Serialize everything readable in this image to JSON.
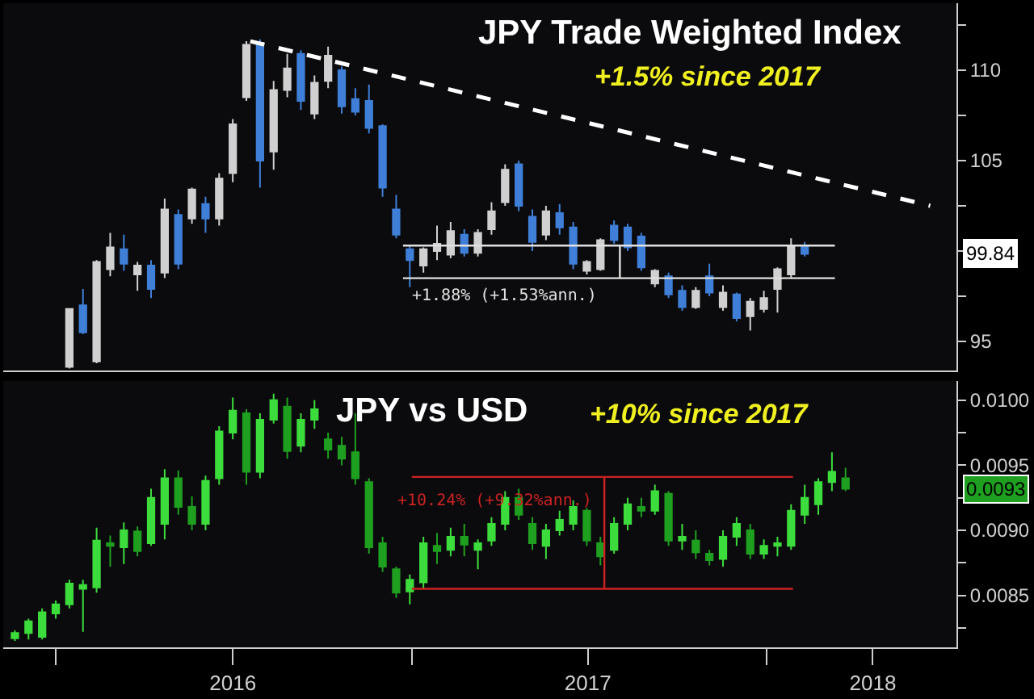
{
  "chart_data": [
    {
      "type": "candlestick",
      "title": "JPY Trade Weighted Index",
      "subtitle": "+1.5% since 2017",
      "x": [
        "2016-01-15",
        "2016-01-29",
        "2016-02-12",
        "2016-02-26",
        "2016-03-11",
        "2016-03-25",
        "2016-04-08",
        "2016-04-22",
        "2016-05-06",
        "2016-05-20",
        "2016-06-03",
        "2016-06-17",
        "2016-07-01",
        "2016-07-15",
        "2016-07-29",
        "2016-08-12",
        "2016-08-26",
        "2016-09-09",
        "2016-09-23",
        "2016-10-07",
        "2016-10-21",
        "2016-11-04",
        "2016-11-18",
        "2016-12-02",
        "2016-12-16",
        "2016-12-30",
        "2017-01-13",
        "2017-01-27",
        "2017-02-10",
        "2017-02-24",
        "2017-03-10",
        "2017-03-24",
        "2017-04-07",
        "2017-04-21",
        "2017-05-05",
        "2017-05-19",
        "2017-06-02",
        "2017-06-16",
        "2017-06-30",
        "2017-07-14",
        "2017-07-28",
        "2017-08-11",
        "2017-08-25",
        "2017-09-08",
        "2017-09-22",
        "2017-10-06",
        "2017-10-20",
        "2017-11-03",
        "2017-11-17",
        "2017-12-01",
        "2017-12-15",
        "2017-12-29",
        "2018-01-12",
        "2018-01-26",
        "2018-02-09"
      ],
      "ohlc": [
        [
          93.6,
          96.8,
          93.5,
          96.8
        ],
        [
          97.0,
          97.9,
          95.4,
          95.5
        ],
        [
          93.9,
          99.5,
          93.8,
          99.4
        ],
        [
          99.0,
          101.0,
          98.6,
          100.2
        ],
        [
          100.1,
          100.9,
          98.9,
          99.3
        ],
        [
          98.7,
          99.4,
          97.8,
          99.2
        ],
        [
          99.2,
          99.5,
          97.4,
          97.9
        ],
        [
          98.8,
          102.9,
          98.5,
          102.3
        ],
        [
          102.0,
          102.3,
          99.0,
          99.3
        ],
        [
          101.8,
          103.5,
          101.5,
          103.4
        ],
        [
          102.6,
          103.0,
          101.0,
          101.8
        ],
        [
          101.8,
          104.3,
          101.4,
          104.0
        ],
        [
          104.3,
          107.3,
          103.8,
          107.0
        ],
        [
          108.5,
          111.6,
          108.3,
          111.4
        ],
        [
          111.5,
          111.7,
          103.5,
          105.0
        ],
        [
          105.5,
          109.4,
          104.5,
          108.9
        ],
        [
          108.9,
          110.9,
          108.5,
          110.1
        ],
        [
          110.9,
          111.1,
          107.8,
          108.3
        ],
        [
          107.6,
          109.7,
          107.3,
          109.3
        ],
        [
          109.4,
          111.3,
          109.0,
          110.8
        ],
        [
          110.0,
          110.2,
          107.6,
          108.0
        ],
        [
          108.4,
          109.0,
          107.5,
          107.7
        ],
        [
          108.3,
          109.2,
          106.5,
          106.8
        ],
        [
          106.9,
          107.0,
          103.0,
          103.5
        ],
        [
          102.3,
          103.1,
          100.7,
          100.9
        ],
        [
          100.1,
          100.3,
          98.0,
          99.5
        ],
        [
          99.2,
          100.2,
          98.8,
          100.1
        ],
        [
          100.0,
          101.4,
          99.5,
          100.4
        ],
        [
          99.8,
          101.6,
          99.6,
          101.1
        ],
        [
          100.9,
          101.2,
          99.7,
          99.9
        ],
        [
          99.9,
          101.2,
          99.7,
          101.0
        ],
        [
          101.2,
          102.7,
          100.9,
          102.2
        ],
        [
          102.7,
          104.8,
          102.5,
          104.5
        ],
        [
          104.8,
          105.0,
          102.2,
          102.5
        ],
        [
          101.9,
          102.3,
          100.0,
          100.5
        ],
        [
          100.9,
          102.5,
          100.6,
          102.2
        ],
        [
          102.1,
          102.6,
          100.9,
          101.3
        ],
        [
          101.3,
          101.6,
          99.0,
          99.3
        ],
        [
          98.9,
          99.5,
          98.7,
          99.4
        ],
        [
          99.0,
          100.7,
          98.9,
          100.6
        ],
        [
          101.4,
          101.7,
          100.4,
          100.6
        ],
        [
          101.3,
          101.5,
          100.0,
          100.2
        ],
        [
          100.8,
          101.0,
          98.9,
          99.1
        ],
        [
          98.2,
          99.0,
          98.0,
          98.9
        ],
        [
          98.6,
          98.8,
          97.4,
          97.6
        ],
        [
          97.8,
          98.1,
          96.7,
          96.9
        ],
        [
          96.9,
          98.0,
          96.8,
          97.8
        ],
        [
          98.6,
          99.3,
          97.5,
          97.7
        ],
        [
          96.9,
          98.1,
          96.7,
          97.7
        ],
        [
          97.6,
          97.7,
          96.1,
          96.3
        ],
        [
          96.4,
          97.4,
          95.6,
          97.2
        ],
        [
          96.8,
          97.8,
          96.6,
          97.4
        ],
        [
          97.9,
          99.1,
          96.6,
          99.0
        ],
        [
          98.7,
          100.7,
          98.5,
          100.3
        ],
        [
          100.3,
          100.5,
          99.7,
          99.84
        ]
      ],
      "colors": [
        "#d0d0d0",
        "#3f7fd8",
        "#d0d0d0",
        "#d0d0d0",
        "#3f7fd8",
        "#d0d0d0",
        "#3f7fd8",
        "#d0d0d0",
        "#3f7fd8",
        "#d0d0d0",
        "#3f7fd8",
        "#d0d0d0",
        "#d0d0d0",
        "#d0d0d0",
        "#3f7fd8",
        "#d0d0d0",
        "#d0d0d0",
        "#3f7fd8",
        "#d0d0d0",
        "#d0d0d0",
        "#3f7fd8",
        "#3f7fd8",
        "#3f7fd8",
        "#3f7fd8",
        "#3f7fd8",
        "#3f7fd8",
        "#d0d0d0",
        "#d0d0d0",
        "#d0d0d0",
        "#3f7fd8",
        "#d0d0d0",
        "#d0d0d0",
        "#d0d0d0",
        "#3f7fd8",
        "#3f7fd8",
        "#d0d0d0",
        "#3f7fd8",
        "#3f7fd8",
        "#d0d0d0",
        "#d0d0d0",
        "#3f7fd8",
        "#3f7fd8",
        "#3f7fd8",
        "#d0d0d0",
        "#3f7fd8",
        "#3f7fd8",
        "#d0d0d0",
        "#3f7fd8",
        "#d0d0d0",
        "#3f7fd8",
        "#d0d0d0",
        "#d0d0d0",
        "#d0d0d0",
        "#d0d0d0",
        "#3f7fd8"
      ],
      "series": [
        {
          "type": "line",
          "line_style": "dashed",
          "color": "#ffffff",
          "x": [
            "2016-07-19",
            "2018-06-18"
          ],
          "values": [
            111.6,
            102.5
          ]
        },
        {
          "type": "line",
          "line_style": "solid",
          "color": "#e0e0e0",
          "x": [
            "2016-12-23",
            "2018-03-12"
          ],
          "values": [
            100.3,
            100.3
          ]
        },
        {
          "type": "line",
          "line_style": "solid",
          "color": "#e0e0e0",
          "x": [
            "2016-12-23",
            "2018-03-12"
          ],
          "values": [
            98.5,
            98.5
          ]
        },
        {
          "type": "line",
          "line_style": "solid",
          "color": "#e0e0e0",
          "x": [
            "2017-08-03",
            "2017-08-03"
          ],
          "values": [
            98.5,
            100.3
          ]
        }
      ],
      "annotations": [
        "+1.88% (+1.53%ann.)",
        "99.84"
      ],
      "xlim": [
        "2015-11-08",
        "2018-07-15"
      ],
      "ylim": [
        93.4,
        113.7
      ],
      "yticks": [
        {
          "value": 112.5,
          "label": null
        },
        110,
        {
          "value": 107.5,
          "label": null
        },
        105,
        {
          "value": 102.5,
          "label": null
        },
        {
          "value": 100,
          "label": null
        },
        {
          "value": 97.5,
          "label": null
        },
        95
      ],
      "tick_labels": "y"
    },
    {
      "type": "candlestick",
      "title": "JPY vs USD",
      "subtitle": "+10% since 2017",
      "x": [
        "2015-11-20",
        "2015-12-04",
        "2015-12-18",
        "2016-01-01",
        "2016-01-15",
        "2016-01-29",
        "2016-02-12",
        "2016-02-26",
        "2016-03-11",
        "2016-03-25",
        "2016-04-08",
        "2016-04-22",
        "2016-05-06",
        "2016-05-20",
        "2016-06-03",
        "2016-06-17",
        "2016-07-01",
        "2016-07-15",
        "2016-07-29",
        "2016-08-12",
        "2016-08-26",
        "2016-09-09",
        "2016-09-23",
        "2016-10-07",
        "2016-10-21",
        "2016-11-04",
        "2016-11-18",
        "2016-12-02",
        "2016-12-16",
        "2016-12-30",
        "2017-01-13",
        "2017-01-27",
        "2017-02-10",
        "2017-02-24",
        "2017-03-10",
        "2017-03-24",
        "2017-04-07",
        "2017-04-21",
        "2017-05-05",
        "2017-05-19",
        "2017-06-02",
        "2017-06-16",
        "2017-06-30",
        "2017-07-14",
        "2017-07-28",
        "2017-08-11",
        "2017-08-25",
        "2017-09-08",
        "2017-09-22",
        "2017-10-06",
        "2017-10-20",
        "2017-11-03",
        "2017-11-17",
        "2017-12-01",
        "2017-12-15",
        "2017-12-29",
        "2018-01-12",
        "2018-01-26",
        "2018-02-09",
        "2018-02-23",
        "2018-03-09",
        "2018-03-23"
      ],
      "ohlc": [
        [
          0.00817,
          0.00823,
          0.00815,
          0.00821
        ],
        [
          0.00821,
          0.00832,
          0.00816,
          0.0083
        ],
        [
          0.00818,
          0.0084,
          0.00816,
          0.00837
        ],
        [
          0.00836,
          0.00846,
          0.00832,
          0.00843
        ],
        [
          0.00843,
          0.00862,
          0.0084,
          0.00859
        ],
        [
          0.00855,
          0.00862,
          0.00822,
          0.00858
        ],
        [
          0.00856,
          0.00902,
          0.00852,
          0.00892
        ],
        [
          0.0089,
          0.00896,
          0.00872,
          0.00888
        ],
        [
          0.00887,
          0.00906,
          0.00874,
          0.009
        ],
        [
          0.00899,
          0.00903,
          0.0088,
          0.00884
        ],
        [
          0.0089,
          0.00932,
          0.00888,
          0.00925
        ],
        [
          0.00905,
          0.00947,
          0.00893,
          0.0094
        ],
        [
          0.0094,
          0.00946,
          0.00912,
          0.00918
        ],
        [
          0.00918,
          0.00926,
          0.009,
          0.00905
        ],
        [
          0.00905,
          0.00942,
          0.009,
          0.00938
        ],
        [
          0.0094,
          0.0098,
          0.00935,
          0.00976
        ],
        [
          0.00975,
          0.01002,
          0.0097,
          0.00992
        ],
        [
          0.0099,
          0.00993,
          0.00935,
          0.00945
        ],
        [
          0.00945,
          0.0099,
          0.0094,
          0.00985
        ],
        [
          0.00985,
          0.01005,
          0.00982,
          0.01
        ],
        [
          0.00995,
          0.01002,
          0.00955,
          0.00961
        ],
        [
          0.00965,
          0.0099,
          0.0096,
          0.00985
        ],
        [
          0.00985,
          0.01,
          0.00978,
          0.00993
        ],
        [
          0.0097,
          0.00975,
          0.00955,
          0.00962
        ],
        [
          0.00965,
          0.00972,
          0.0095,
          0.00955
        ],
        [
          0.0096,
          0.0099,
          0.00935,
          0.0094
        ],
        [
          0.00937,
          0.0094,
          0.00882,
          0.00887
        ],
        [
          0.0089,
          0.00895,
          0.00868,
          0.00872
        ],
        [
          0.0087,
          0.00872,
          0.00848,
          0.00852
        ],
        [
          0.00853,
          0.00866,
          0.00843,
          0.00862
        ],
        [
          0.0086,
          0.00895,
          0.00855,
          0.0089
        ],
        [
          0.00888,
          0.00898,
          0.00874,
          0.00884
        ],
        [
          0.00885,
          0.00902,
          0.0088,
          0.00895
        ],
        [
          0.00895,
          0.00905,
          0.0088,
          0.00889
        ],
        [
          0.00885,
          0.00893,
          0.0087,
          0.0089
        ],
        [
          0.00892,
          0.0091,
          0.00888,
          0.00905
        ],
        [
          0.00905,
          0.0093,
          0.009,
          0.00925
        ],
        [
          0.00925,
          0.00932,
          0.00908,
          0.00912
        ],
        [
          0.00905,
          0.0091,
          0.00885,
          0.0089
        ],
        [
          0.00888,
          0.00905,
          0.00878,
          0.009
        ],
        [
          0.009,
          0.00915,
          0.00896,
          0.00908
        ],
        [
          0.00905,
          0.00923,
          0.009,
          0.00918
        ],
        [
          0.00915,
          0.00917,
          0.00888,
          0.00892
        ],
        [
          0.0089,
          0.00895,
          0.00873,
          0.0088
        ],
        [
          0.00885,
          0.0091,
          0.00882,
          0.00905
        ],
        [
          0.00905,
          0.00925,
          0.009,
          0.0092
        ],
        [
          0.00918,
          0.00925,
          0.0091,
          0.00915
        ],
        [
          0.00915,
          0.00935,
          0.00912,
          0.0093
        ],
        [
          0.00928,
          0.0093,
          0.00888,
          0.00892
        ],
        [
          0.00892,
          0.00905,
          0.00885,
          0.00895
        ],
        [
          0.00892,
          0.009,
          0.00878,
          0.00883
        ],
        [
          0.00882,
          0.00885,
          0.00873,
          0.00877
        ],
        [
          0.00878,
          0.009,
          0.00872,
          0.00895
        ],
        [
          0.00895,
          0.0091,
          0.00888,
          0.00905
        ],
        [
          0.009,
          0.00905,
          0.00878,
          0.00882
        ],
        [
          0.00882,
          0.00893,
          0.00878,
          0.00888
        ],
        [
          0.00888,
          0.00895,
          0.0088,
          0.0089
        ],
        [
          0.00888,
          0.0092,
          0.00885,
          0.00915
        ],
        [
          0.00912,
          0.00935,
          0.00905,
          0.00925
        ],
        [
          0.0092,
          0.0094,
          0.00912,
          0.00937
        ],
        [
          0.00937,
          0.0096,
          0.0093,
          0.00945
        ],
        [
          0.0094,
          0.00948,
          0.0093,
          0.00932
        ]
      ],
      "colors": [
        "#3ddc3d",
        "#3ddc3d",
        "#3ddc3d",
        "#3ddc3d",
        "#3ddc3d",
        "#3ddc3d",
        "#3ddc3d",
        "#1f9f1f",
        "#3ddc3d",
        "#1f9f1f",
        "#3ddc3d",
        "#3ddc3d",
        "#1f9f1f",
        "#1f9f1f",
        "#3ddc3d",
        "#3ddc3d",
        "#3ddc3d",
        "#1f9f1f",
        "#3ddc3d",
        "#3ddc3d",
        "#1f9f1f",
        "#3ddc3d",
        "#3ddc3d",
        "#1f9f1f",
        "#1f9f1f",
        "#1f9f1f",
        "#1f9f1f",
        "#1f9f1f",
        "#1f9f1f",
        "#3ddc3d",
        "#3ddc3d",
        "#1f9f1f",
        "#3ddc3d",
        "#1f9f1f",
        "#3ddc3d",
        "#3ddc3d",
        "#3ddc3d",
        "#1f9f1f",
        "#1f9f1f",
        "#3ddc3d",
        "#3ddc3d",
        "#3ddc3d",
        "#1f9f1f",
        "#1f9f1f",
        "#3ddc3d",
        "#3ddc3d",
        "#1f9f1f",
        "#3ddc3d",
        "#1f9f1f",
        "#3ddc3d",
        "#1f9f1f",
        "#1f9f1f",
        "#3ddc3d",
        "#3ddc3d",
        "#1f9f1f",
        "#3ddc3d",
        "#3ddc3d",
        "#3ddc3d",
        "#3ddc3d",
        "#3ddc3d",
        "#3ddc3d",
        "#1f9f1f"
      ],
      "series": [
        {
          "type": "line",
          "line_style": "solid",
          "color": "#cc2222",
          "x": [
            "2017-01-01",
            "2018-01-28"
          ],
          "values": [
            0.00941,
            0.00941
          ]
        },
        {
          "type": "line",
          "line_style": "solid",
          "color": "#cc2222",
          "x": [
            "2017-01-01",
            "2018-01-28"
          ],
          "values": [
            0.00855,
            0.00855
          ]
        },
        {
          "type": "line",
          "line_style": "solid",
          "color": "#cc2222",
          "x": [
            "2017-07-18",
            "2017-07-18"
          ],
          "values": [
            0.00855,
            0.00941
          ]
        }
      ],
      "annotations": [
        "+10.24% (+9.32%ann.)",
        "0.0093"
      ],
      "xlim": [
        "2015-11-08",
        "2018-07-15"
      ],
      "xticks": [
        {
          "value": "2016-01-01",
          "label": null
        },
        {
          "value": "2016-07-01",
          "label": "2016"
        },
        {
          "value": "2017-01-01",
          "label": null
        },
        {
          "value": "2017-07-01",
          "label": "2017"
        },
        {
          "value": "2018-01-01",
          "label": null
        },
        {
          "value": "2018-04-20",
          "label": "2018"
        }
      ],
      "ylim": [
        0.0081,
        0.01015
      ],
      "yticks": [
        {
          "value": 0.01,
          "label": "0.0100"
        },
        {
          "value": 0.00975,
          "label": null
        },
        {
          "value": 0.0095,
          "label": "0.0095"
        },
        {
          "value": 0.00925,
          "label": null
        },
        {
          "value": 0.009,
          "label": "0.0090"
        },
        {
          "value": 0.00875,
          "label": null
        },
        {
          "value": 0.0085,
          "label": "0.0085"
        },
        {
          "value": 0.00825,
          "label": null
        }
      ]
    }
  ]
}
